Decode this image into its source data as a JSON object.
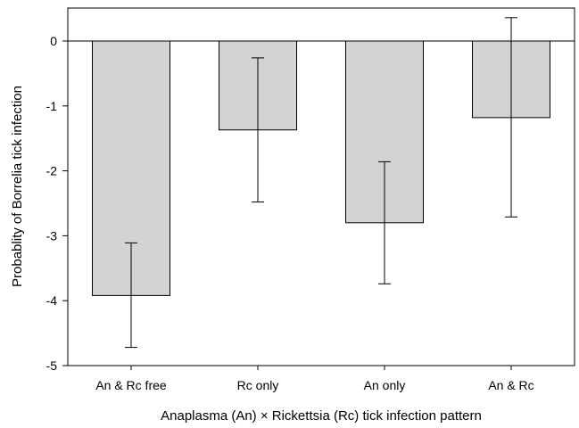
{
  "chart_data": {
    "type": "bar",
    "title": "",
    "xlabel": "Anaplasma (An) × Rickettsia (Rc) tick infection pattern",
    "ylabel": "Probablity of Borrelia tick infection",
    "categories": [
      "An & Rc free",
      "Rc only",
      "An only",
      "An & Rc"
    ],
    "values": [
      -3.92,
      -1.37,
      -2.8,
      -1.18
    ],
    "error_low": [
      -4.72,
      -2.48,
      -3.74,
      -2.71
    ],
    "error_high": [
      -3.11,
      -0.26,
      -1.86,
      0.36
    ],
    "ylim": [
      -5,
      0.55
    ],
    "yticks": [
      0,
      -1,
      -2,
      -3,
      -4,
      -5
    ],
    "ytick_labels": [
      "0",
      "-1",
      "-2",
      "-3",
      "-4",
      "-5"
    ],
    "grid": false,
    "legend": "none",
    "zero_line": true,
    "colors": {
      "bar_fill": "#d3d3d3",
      "bar_stroke": "#000000",
      "axis": "#000000",
      "error_bar": "#000000"
    }
  }
}
